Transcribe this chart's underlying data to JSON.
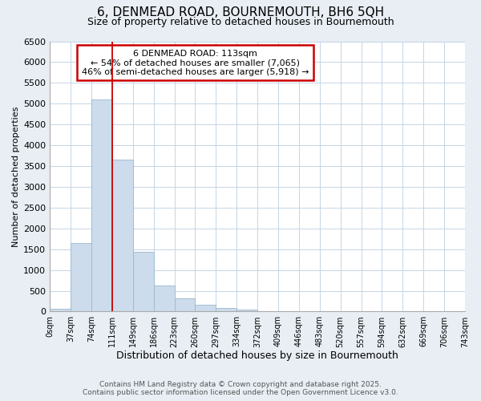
{
  "title": "6, DENMEAD ROAD, BOURNEMOUTH, BH6 5QH",
  "subtitle": "Size of property relative to detached houses in Bournemouth",
  "xlabel": "Distribution of detached houses by size in Bournemouth",
  "ylabel": "Number of detached properties",
  "bar_values": [
    75,
    1650,
    5100,
    3650,
    1430,
    620,
    315,
    160,
    80,
    40,
    0,
    0,
    0,
    0,
    0,
    0,
    0,
    0,
    0,
    0
  ],
  "bin_labels": [
    "0sqm",
    "37sqm",
    "74sqm",
    "111sqm",
    "149sqm",
    "186sqm",
    "223sqm",
    "260sqm",
    "297sqm",
    "334sqm",
    "372sqm",
    "409sqm",
    "446sqm",
    "483sqm",
    "520sqm",
    "557sqm",
    "594sqm",
    "632sqm",
    "669sqm",
    "706sqm",
    "743sqm"
  ],
  "bar_color": "#ccdcec",
  "bar_edge_color": "#9ab8cc",
  "vline_color": "#cc0000",
  "annotation_text": "6 DENMEAD ROAD: 113sqm\n← 54% of detached houses are smaller (7,065)\n46% of semi-detached houses are larger (5,918) →",
  "annotation_box_color": "#ffffff",
  "annotation_box_edge": "#cc0000",
  "ylim": [
    0,
    6500
  ],
  "yticks": [
    0,
    500,
    1000,
    1500,
    2000,
    2500,
    3000,
    3500,
    4000,
    4500,
    5000,
    5500,
    6000,
    6500
  ],
  "footer_line1": "Contains HM Land Registry data © Crown copyright and database right 2025.",
  "footer_line2": "Contains public sector information licensed under the Open Government Licence v3.0.",
  "bg_color": "#e8eef4",
  "plot_bg_color": "#ffffff"
}
